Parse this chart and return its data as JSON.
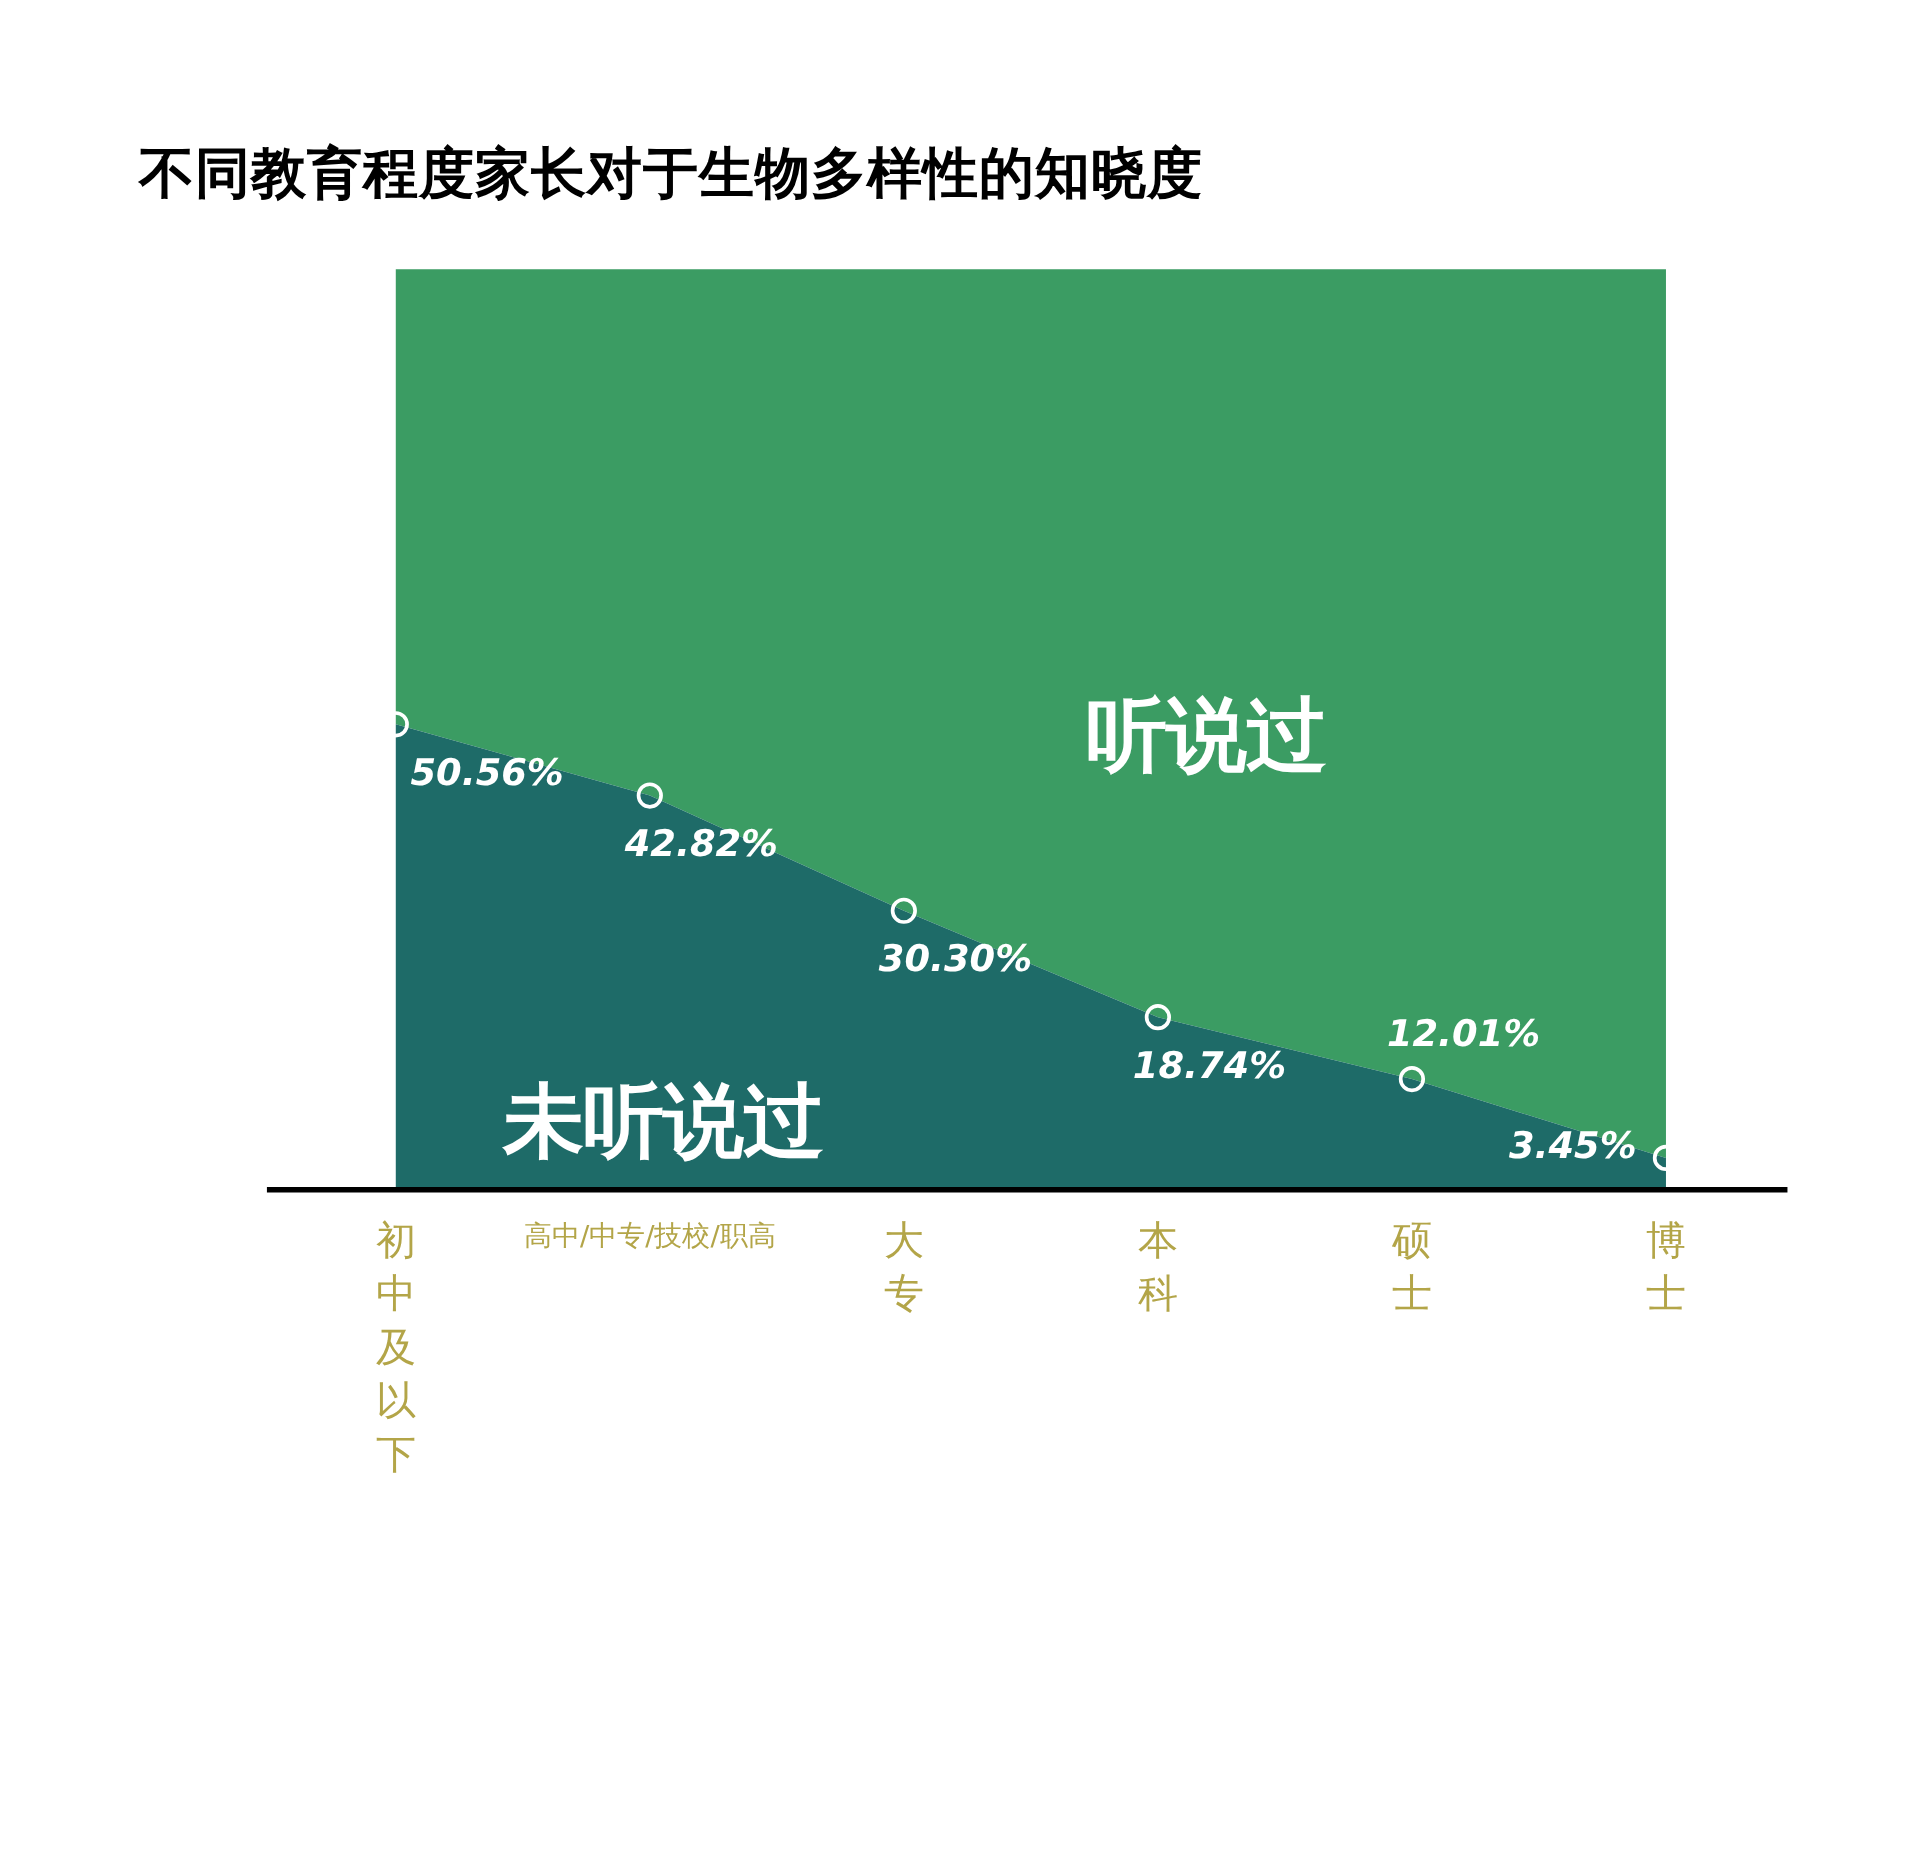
{
  "chart_data": {
    "type": "area",
    "title": "不同教育程度家长对于生物多样性的知晓度",
    "categories": [
      "初中及以下",
      "高中/中专/技校/职高",
      "大专",
      "本科",
      "硕士",
      "博士"
    ],
    "stacked": true,
    "tick_labels": "x",
    "series": [
      {
        "name": "未听说过",
        "color": "#1e6b68",
        "marker": "circle",
        "values": [
          50.56,
          42.82,
          30.3,
          18.74,
          12.01,
          3.45
        ],
        "value_labels": [
          "50.56%",
          "42.82%",
          "30.30%",
          "18.74%",
          "12.01%",
          "3.45%"
        ]
      },
      {
        "name": "听说过",
        "color": "#3b9c63",
        "values": [
          49.44,
          57.18,
          69.7,
          81.26,
          87.99,
          96.55
        ]
      }
    ]
  }
}
